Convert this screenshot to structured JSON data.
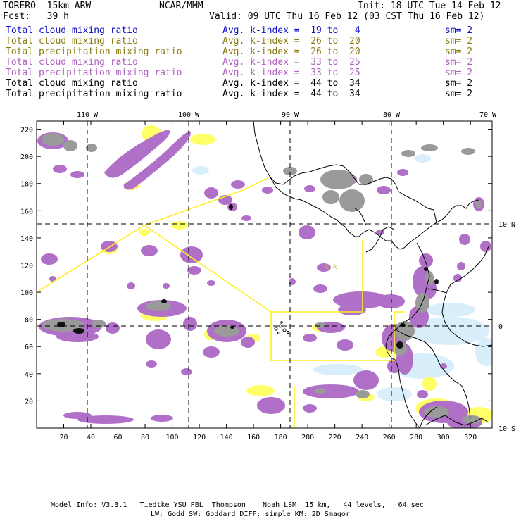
{
  "header": {
    "model": "TORERO  15km ARW",
    "org": "NCAR/MMM",
    "init": "Init: 18 UTC Tue 14 Feb 12",
    "fcst": "Fcst:   39 h",
    "valid": "Valid: 09 UTC Thu 16 Feb 12 (03 CST Thu 16 Feb 12)"
  },
  "fields": [
    {
      "name": "Total cloud mixing ratio",
      "kidx": "Avg. k-index =  19 to   4",
      "sm": "sm= 2",
      "color": "#1010c8"
    },
    {
      "name": "Total cloud mixing ratio",
      "kidx": "Avg. k-index =  26 to  20",
      "sm": "sm= 2",
      "color": "#8a7a10"
    },
    {
      "name": "Total precipitation mixing ratio",
      "kidx": "Avg. k-index =  26 to  20",
      "sm": "sm= 2",
      "color": "#8a7a10"
    },
    {
      "name": "Total cloud mixing ratio",
      "kidx": "Avg. k-index =  33 to  25",
      "sm": "sm= 2",
      "color": "#b060c0"
    },
    {
      "name": "Total precipitation mixing ratio",
      "kidx": "Avg. k-index =  33 to  25",
      "sm": "sm= 2",
      "color": "#b060c0"
    },
    {
      "name": "Total cloud mixing ratio",
      "kidx": "Avg. k-index =  44 to  34",
      "sm": "sm= 2",
      "color": "#000000"
    },
    {
      "name": "Total precipitation mixing ratio",
      "kidx": "Avg. k-index =  44 to  34",
      "sm": "sm= 2",
      "color": "#000000"
    }
  ],
  "map": {
    "lon_labels": [
      "110 W",
      "100 W",
      "90 W",
      "80 W",
      "70 W"
    ],
    "lat_labels": [
      "10 N",
      "0",
      "10 S"
    ],
    "x_ticks": [
      "20",
      "40",
      "60",
      "80",
      "100",
      "120",
      "140",
      "160",
      "180",
      "200",
      "220",
      "240",
      "260",
      "280",
      "300",
      "320"
    ],
    "y_ticks": [
      "220",
      "200",
      "180",
      "160",
      "140",
      "120",
      "100",
      "80",
      "60",
      "40",
      "20"
    ],
    "region_label": "C R"
  },
  "footer": {
    "line1": "Model Info: V3.3.1   Tiedtke YSU PBL  Thompson    Noah LSM  15 km,   44 levels,   64 sec",
    "line2": "LW: Godd SW: Goddard DIFF: simple KM: 2D Smagor"
  }
}
